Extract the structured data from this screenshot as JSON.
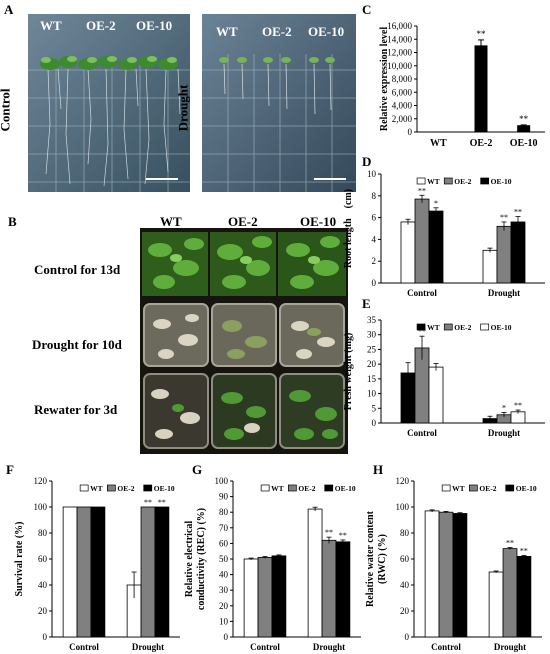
{
  "panel_letters": [
    "A",
    "B",
    "C",
    "D",
    "E",
    "F",
    "G",
    "H"
  ],
  "panelA": {
    "control_label": "Control",
    "drought_label": "Drought",
    "genotypes": [
      "WT",
      "OE-2",
      "OE-10"
    ]
  },
  "panelB": {
    "genotypes": [
      "WT",
      "OE-2",
      "OE-10"
    ],
    "rows": [
      "Control for 13d",
      "Drought for 10d",
      "Rewater for 3d"
    ]
  },
  "chart_data": [
    {
      "id": "C",
      "type": "bar",
      "title": "",
      "xlabel": "",
      "ylabel": "Relative expression level",
      "categories": [
        "WT",
        "OE-2",
        "OE-10"
      ],
      "series": [
        {
          "values": [
            1,
            13000,
            950
          ],
          "errors": [
            0,
            900,
            120
          ]
        }
      ],
      "significance": [
        "",
        "**",
        "**"
      ],
      "ylim": [
        0,
        16000
      ],
      "yticks": [
        "0",
        "2,000",
        "4,000",
        "6,000",
        "8,000",
        "10,000",
        "12,000",
        "14,000",
        "16,000"
      ],
      "bar_colors": [
        "#000000"
      ],
      "legend": "none",
      "grid": false
    },
    {
      "id": "D",
      "type": "bar",
      "ylabel": "Root length　(cm)",
      "categories": [
        "Control",
        "Drought"
      ],
      "series": [
        {
          "name": "WT",
          "values": [
            5.6,
            3.0
          ],
          "errors": [
            0.25,
            0.2
          ],
          "sig": [
            "",
            ""
          ]
        },
        {
          "name": "OE-2",
          "values": [
            7.7,
            5.2
          ],
          "errors": [
            0.35,
            0.4
          ],
          "sig": [
            "**",
            "**"
          ]
        },
        {
          "name": "OE-10",
          "values": [
            6.6,
            5.6
          ],
          "errors": [
            0.3,
            0.5
          ],
          "sig": [
            "*",
            "**"
          ]
        }
      ],
      "ylim": [
        0,
        10
      ],
      "yticks": [
        "0",
        "2",
        "4",
        "6",
        "8",
        "10"
      ],
      "series_colors": [
        "#ffffff",
        "#808080",
        "#000000"
      ],
      "legend": "top-right",
      "grid": false
    },
    {
      "id": "E",
      "type": "bar",
      "ylabel": "Fresh weight (mg)",
      "categories": [
        "Control",
        "Drought"
      ],
      "series": [
        {
          "name": "WT",
          "values": [
            17,
            1.5
          ],
          "errors": [
            3.5,
            0.8
          ],
          "sig": [
            "",
            ""
          ]
        },
        {
          "name": "OE-2",
          "values": [
            25.5,
            2.8
          ],
          "errors": [
            4.0,
            0.8
          ],
          "sig": [
            "**",
            "*"
          ]
        },
        {
          "name": "OE-10",
          "values": [
            19,
            3.8
          ],
          "errors": [
            1.2,
            0.6
          ],
          "sig": [
            "",
            "**"
          ]
        }
      ],
      "ylim": [
        0,
        35
      ],
      "yticks": [
        "0",
        "5",
        "10",
        "15",
        "20",
        "25",
        "30",
        "35"
      ],
      "series_colors": [
        "#000000",
        "#808080",
        "#ffffff"
      ],
      "legend": "top-right",
      "grid": false
    },
    {
      "id": "F",
      "type": "bar",
      "ylabel": "Survival rate (%)",
      "categories": [
        "Control",
        "Drought"
      ],
      "series": [
        {
          "name": "WT",
          "values": [
            100,
            40
          ],
          "errors": [
            0,
            10
          ],
          "sig": [
            "",
            ""
          ]
        },
        {
          "name": "OE-2",
          "values": [
            100,
            100
          ],
          "errors": [
            0,
            0
          ],
          "sig": [
            "",
            "**"
          ]
        },
        {
          "name": "OE-10",
          "values": [
            100,
            100
          ],
          "errors": [
            0,
            0
          ],
          "sig": [
            "",
            "**"
          ]
        }
      ],
      "ylim": [
        0,
        120
      ],
      "yticks": [
        "0",
        "20",
        "40",
        "60",
        "80",
        "100",
        "120"
      ],
      "series_colors": [
        "#ffffff",
        "#808080",
        "#000000"
      ],
      "legend": "top-right",
      "grid": false
    },
    {
      "id": "G",
      "type": "bar",
      "ylabel": "Relative electrical conductivity (REC) (%)",
      "ylabel_lines": [
        "Relative electrical",
        "conductivity (REC) (%)"
      ],
      "categories": [
        "Control",
        "Drought"
      ],
      "series": [
        {
          "name": "WT",
          "values": [
            50,
            82
          ],
          "errors": [
            0.6,
            1.2
          ],
          "sig": [
            "",
            ""
          ]
        },
        {
          "name": "OE-2",
          "values": [
            51,
            62
          ],
          "errors": [
            0.6,
            2.0
          ],
          "sig": [
            "",
            "**"
          ]
        },
        {
          "name": "OE-10",
          "values": [
            52,
            61
          ],
          "errors": [
            0.6,
            1.2
          ],
          "sig": [
            "",
            "**"
          ]
        }
      ],
      "ylim": [
        0,
        100
      ],
      "yticks": [
        "0",
        "10",
        "20",
        "30",
        "40",
        "50",
        "60",
        "70",
        "80",
        "90",
        "100"
      ],
      "series_colors": [
        "#ffffff",
        "#808080",
        "#000000"
      ],
      "legend": "top-right",
      "grid": false
    },
    {
      "id": "H",
      "type": "bar",
      "ylabel": "Relative water content (RWC) (%)",
      "ylabel_lines": [
        "Relative water content",
        "(RWC) (%)"
      ],
      "categories": [
        "Control",
        "Drought"
      ],
      "series": [
        {
          "name": "WT",
          "values": [
            97,
            50
          ],
          "errors": [
            0.8,
            0.8
          ],
          "sig": [
            "",
            ""
          ]
        },
        {
          "name": "OE-2",
          "values": [
            96,
            68
          ],
          "errors": [
            0.6,
            0.8
          ],
          "sig": [
            "",
            "**"
          ]
        },
        {
          "name": "OE-10",
          "values": [
            95,
            62
          ],
          "errors": [
            0.6,
            0.8
          ],
          "sig": [
            "",
            "**"
          ]
        }
      ],
      "ylim": [
        0,
        120
      ],
      "yticks": [
        "0",
        "20",
        "40",
        "60",
        "80",
        "100",
        "120"
      ],
      "series_colors": [
        "#ffffff",
        "#808080",
        "#000000"
      ],
      "legend": "top-right",
      "grid": false
    }
  ]
}
